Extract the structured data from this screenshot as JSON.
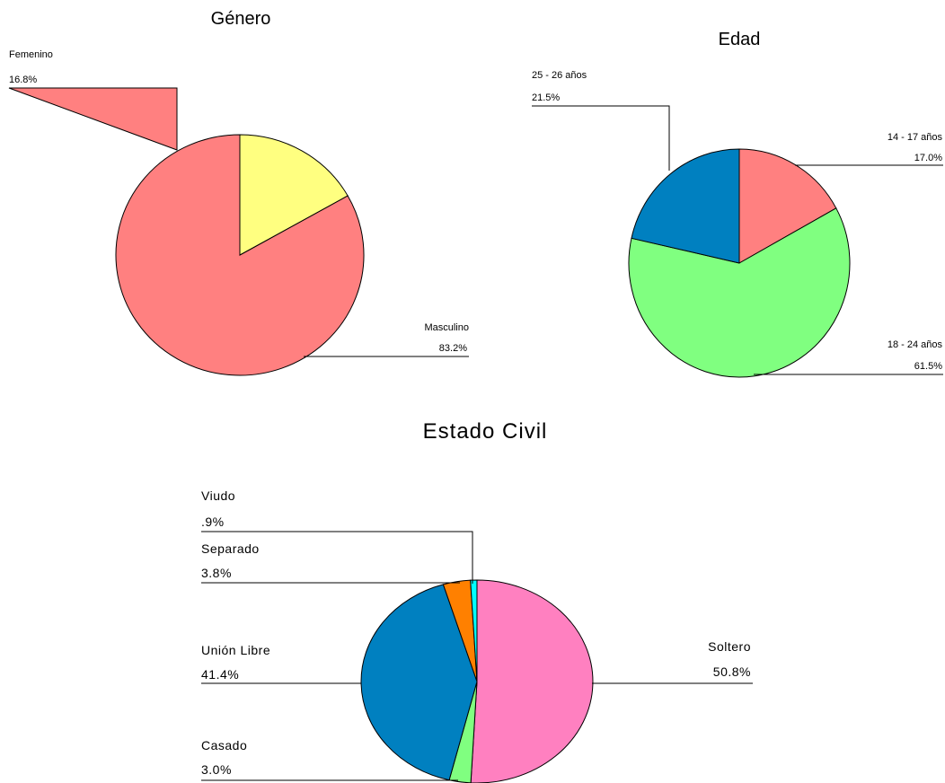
{
  "chart_data": [
    {
      "type": "pie",
      "title": "Género",
      "slices": [
        {
          "label": "Masculino",
          "value_label": "83.2%",
          "value": 83.2,
          "color": "#FF8080"
        },
        {
          "label": "Femenino",
          "value_label": "16.8%",
          "value": 16.8,
          "color": "#FFFF80"
        }
      ]
    },
    {
      "type": "pie",
      "title": "Edad",
      "slices": [
        {
          "label": "14 - 17 años",
          "value_label": "17.0%",
          "value": 17.0,
          "color": "#FF8080"
        },
        {
          "label": "18 - 24 años",
          "value_label": "61.5%",
          "value": 61.5,
          "color": "#80FF80"
        },
        {
          "label": "25 - 26 años",
          "value_label": "21.5%",
          "value": 21.5,
          "color": "#0080C0"
        }
      ]
    },
    {
      "type": "pie",
      "title": "Estado Civil",
      "slices": [
        {
          "label": "Soltero",
          "value_label": "50.8%",
          "value": 50.8,
          "color": "#FF80C0"
        },
        {
          "label": "Casado",
          "value_label": "3.0%",
          "value": 3.0,
          "color": "#80FF80"
        },
        {
          "label": "Unión Libre",
          "value_label": "41.4%",
          "value": 41.4,
          "color": "#0080C0"
        },
        {
          "label": "Separado",
          "value_label": "3.8%",
          "value": 3.8,
          "color": "#FF8000"
        },
        {
          "label": "Viudo",
          "value_label": ".9%",
          "value": 0.9,
          "color": "#00FFFF"
        }
      ]
    }
  ]
}
